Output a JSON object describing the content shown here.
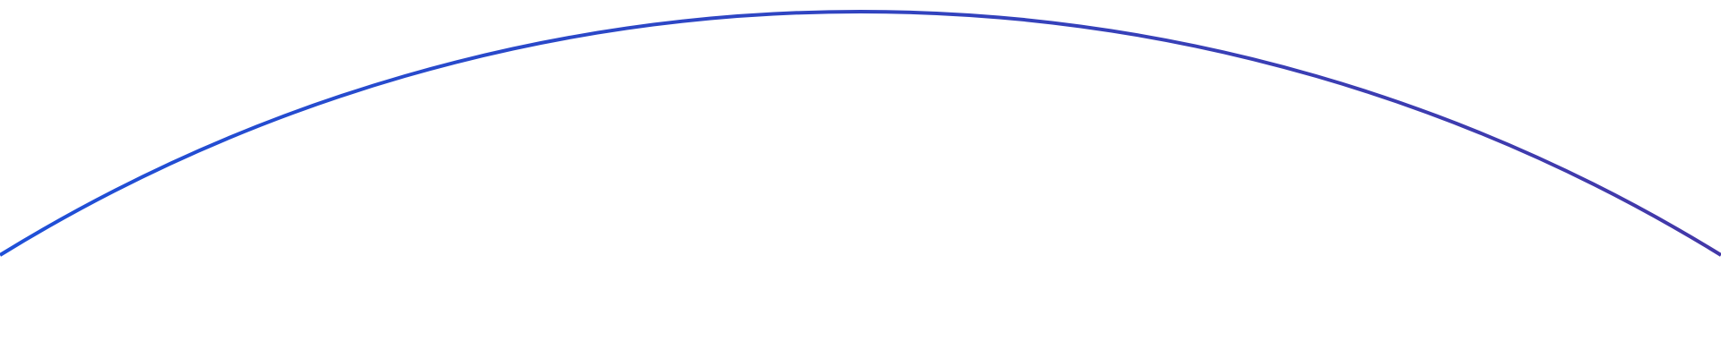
{
  "decoration": {
    "shape": "circle-arc",
    "colors": {
      "stroke_start": "#1f50d8",
      "stroke_end": "#4338a8",
      "background": "#ffffff"
    }
  }
}
